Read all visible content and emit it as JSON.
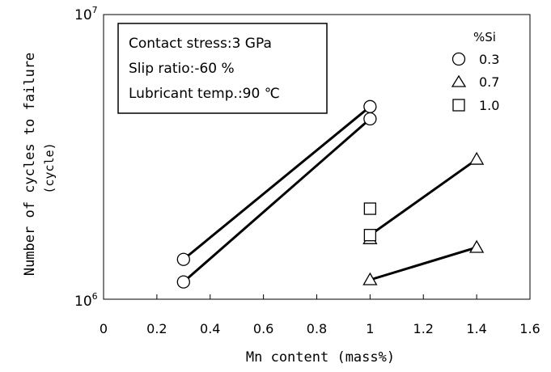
{
  "chart_data": {
    "type": "scatter",
    "xlabel": "Mn content (mass%)",
    "ylabel": "Number of cycles to failure",
    "ylabel_unit": "(cycle)",
    "x_ticks": [
      "0",
      "0.2",
      "0.4",
      "0.6",
      "0.8",
      "1",
      "1.2",
      "1.4",
      "1.6"
    ],
    "y_tick_labels": [
      "10",
      "10"
    ],
    "y_tick_exps": [
      "6",
      "7"
    ],
    "xlim": [
      0,
      1.6
    ],
    "ylim": [
      1000000,
      10000000
    ],
    "y_scale": "log",
    "grid": false,
    "conditions": [
      "Contact stress:3 GPa",
      "Slip ratio:-60 %",
      "Lubricant temp.:90 ℃"
    ],
    "legend_title": "%Si",
    "legend_position": "top-right",
    "series": [
      {
        "name": "0.3",
        "marker": "circle",
        "x": [
          0.3,
          0.3,
          1.0,
          1.0
        ],
        "y": [
          1150000,
          1380000,
          4300000,
          4750000
        ]
      },
      {
        "name": "0.7",
        "marker": "triangle",
        "x": [
          1.0,
          1.0,
          1.4,
          1.4
        ],
        "y": [
          1630000,
          1170000,
          1520000,
          3100000
        ]
      },
      {
        "name": "1.0",
        "marker": "square",
        "x": [
          1.0,
          1.0
        ],
        "y": [
          2080000,
          1680000
        ]
      }
    ],
    "fit_lines": [
      {
        "x": [
          0.3,
          1.0
        ],
        "y": [
          1150000,
          4300000
        ]
      },
      {
        "x": [
          0.3,
          1.0
        ],
        "y": [
          1380000,
          4750000
        ]
      },
      {
        "x": [
          1.0,
          1.4
        ],
        "y": [
          1680000,
          3100000
        ]
      },
      {
        "x": [
          1.0,
          1.4
        ],
        "y": [
          1170000,
          1520000
        ]
      }
    ]
  }
}
